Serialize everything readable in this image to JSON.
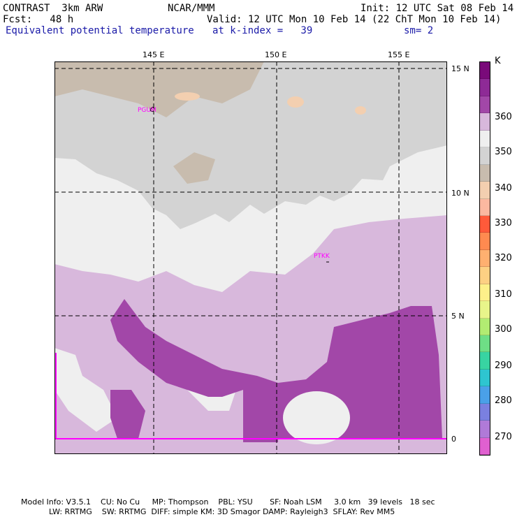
{
  "header": {
    "model": "CONTRAST  3km ARW",
    "org": "NCAR/MMM",
    "init": "Init: 12 UTC Sat 08 Feb 14",
    "fcst": "Fcst:   48 h",
    "valid": "Valid: 12 UTC Mon 10 Feb 14 (22 ChT Mon 10 Feb 14)",
    "field": "Equivalent potential temperature",
    "level": "at k-index =   39",
    "smooth": "sm= 2"
  },
  "map": {
    "lon_labels": [
      "145 E",
      "150 E",
      "155 E"
    ],
    "lat_labels": [
      "15 N",
      "10 N",
      "5 N",
      "0"
    ],
    "stations": [
      "PGUM",
      "PTKK"
    ]
  },
  "legend": {
    "unit": "K",
    "labels": [
      "360",
      "350",
      "340",
      "330",
      "320",
      "310",
      "300",
      "290",
      "280",
      "270"
    ],
    "colors": [
      "#7a0a7a",
      "#8e2a96",
      "#a247a8",
      "#d8b8dc",
      "#efefef",
      "#d3d3d3",
      "#c8bcae",
      "#f3cfb0",
      "#fbb8a0",
      "#ff5a3a",
      "#ff8a50",
      "#ffb070",
      "#fdd083",
      "#fef08a",
      "#e8f58a",
      "#b2ec72",
      "#6ede86",
      "#38d4a2",
      "#2ec5d0",
      "#4aa0e8",
      "#7a80e0",
      "#b07ad8",
      "#e060d0"
    ]
  },
  "footer": {
    "line1": "Model Info: V3.5.1    CU: No Cu     MP: Thompson    PBL: YSU       SF: Noah LSM     3.0 km   39 levels   18 sec",
    "line2": "LW: RRTMG    SW: RRTMG  DIFF: simple KM: 3D Smagor DAMP: Rayleigh3  SFLAY: Rev MM5"
  }
}
